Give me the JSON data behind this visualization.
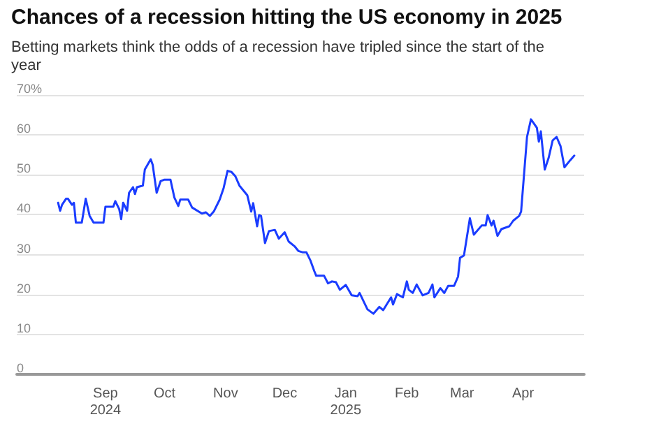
{
  "chart_data": {
    "type": "line",
    "title": "Chances of a recession hitting the US economy in 2025",
    "subtitle": "Betting markets think the odds of a recession have tripled since the start of the year",
    "x": [
      "2024-08-08",
      "2024-08-09",
      "2024-08-10",
      "2024-08-12",
      "2024-08-13",
      "2024-08-15",
      "2024-08-16",
      "2024-08-17",
      "2024-08-20",
      "2024-08-22",
      "2024-08-24",
      "2024-08-26",
      "2024-08-31",
      "2024-09-01",
      "2024-09-05",
      "2024-09-06",
      "2024-09-08",
      "2024-09-09",
      "2024-09-10",
      "2024-09-12",
      "2024-09-13",
      "2024-09-15",
      "2024-09-16",
      "2024-09-17",
      "2024-09-20",
      "2024-09-21",
      "2024-09-24",
      "2024-09-25",
      "2024-09-27",
      "2024-09-29",
      "2024-10-01",
      "2024-10-04",
      "2024-10-06",
      "2024-10-08",
      "2024-10-09",
      "2024-10-13",
      "2024-10-15",
      "2024-10-20",
      "2024-10-22",
      "2024-10-24",
      "2024-10-26",
      "2024-10-29",
      "2024-10-31",
      "2024-11-02",
      "2024-11-04",
      "2024-11-06",
      "2024-11-08",
      "2024-11-12",
      "2024-11-14",
      "2024-11-15",
      "2024-11-17",
      "2024-11-18",
      "2024-11-19",
      "2024-11-21",
      "2024-11-23",
      "2024-11-26",
      "2024-11-28",
      "2024-12-01",
      "2024-12-03",
      "2024-12-06",
      "2024-12-08",
      "2024-12-10",
      "2024-12-12",
      "2024-12-14",
      "2024-12-16",
      "2024-12-17",
      "2024-12-21",
      "2024-12-23",
      "2024-12-25",
      "2024-12-27",
      "2024-12-29",
      "2025-01-01",
      "2025-01-04",
      "2025-01-07",
      "2025-01-08",
      "2025-01-12",
      "2025-01-15",
      "2025-01-18",
      "2025-01-20",
      "2025-01-24",
      "2025-01-25",
      "2025-01-27",
      "2025-01-30",
      "2025-02-01",
      "2025-02-02",
      "2025-02-04",
      "2025-02-06",
      "2025-02-09",
      "2025-02-12",
      "2025-02-14",
      "2025-02-15",
      "2025-02-18",
      "2025-02-20",
      "2025-02-22",
      "2025-02-25",
      "2025-02-27",
      "2025-02-28",
      "2025-03-02",
      "2025-03-05",
      "2025-03-07",
      "2025-03-11",
      "2025-03-13",
      "2025-03-14",
      "2025-03-16",
      "2025-03-17",
      "2025-03-19",
      "2025-03-21",
      "2025-03-25",
      "2025-03-27",
      "2025-03-30",
      "2025-03-31",
      "2025-04-03",
      "2025-04-05",
      "2025-04-08",
      "2025-04-09",
      "2025-04-10",
      "2025-04-12",
      "2025-04-14",
      "2025-04-16",
      "2025-04-18",
      "2025-04-20",
      "2025-04-22",
      "2025-04-25",
      "2025-04-27"
    ],
    "series": [
      {
        "color": "#1a3cff",
        "values": [
          43,
          41,
          42.5,
          44,
          44,
          42.5,
          43,
          38,
          38,
          44,
          39.7,
          38,
          38,
          42,
          42,
          43.4,
          41.4,
          38.9,
          43,
          41,
          45.5,
          46.9,
          45.2,
          46.9,
          47.3,
          51.3,
          53.9,
          52.5,
          45.5,
          48.4,
          48.8,
          48.8,
          44.3,
          42.2,
          43.8,
          43.8,
          41.8,
          40.3,
          40.6,
          39.7,
          40.8,
          43.8,
          46.7,
          51,
          50.7,
          49.6,
          47.3,
          44.9,
          40.8,
          42.9,
          37.1,
          39.9,
          39.7,
          32.9,
          35.9,
          36.2,
          34,
          35.6,
          33.3,
          32.1,
          30.9,
          30.6,
          30.6,
          28.6,
          25.9,
          24.7,
          24.7,
          22.8,
          23.3,
          23.1,
          21.2,
          22.4,
          19.8,
          19.6,
          20.4,
          16.3,
          15.2,
          16.9,
          16.1,
          19.3,
          17.5,
          20.1,
          19.3,
          23.3,
          21.2,
          20.4,
          22.5,
          19.8,
          20.4,
          22.5,
          19.3,
          21.6,
          20.4,
          22.2,
          22.2,
          24.5,
          29.2,
          29.8,
          39.1,
          35,
          37.3,
          37.3,
          39.9,
          37.3,
          38.5,
          34.7,
          36.4,
          37.1,
          38.5,
          39.7,
          40.8,
          59.5,
          63.9,
          61.8,
          58.3,
          60.9,
          51.3,
          54.3,
          58.6,
          59.5,
          57.2,
          51.9,
          53.7,
          54.8
        ]
      }
    ],
    "xlim": [
      "2024-07-18",
      "2025-05-02"
    ],
    "xticks": [
      {
        "value": "2024-09-01",
        "label": "Sep\n2024"
      },
      {
        "value": "2024-10-01",
        "label": "Oct"
      },
      {
        "value": "2024-11-01",
        "label": "Nov"
      },
      {
        "value": "2024-12-01",
        "label": "Dec"
      },
      {
        "value": "2025-01-01",
        "label": "Jan\n2025"
      },
      {
        "value": "2025-02-01",
        "label": "Feb"
      },
      {
        "value": "2025-03-01",
        "label": "Mar"
      },
      {
        "value": "2025-04-01",
        "label": "Apr"
      }
    ],
    "ylim": [
      0,
      70
    ],
    "yticks": [
      0,
      10,
      20,
      30,
      40,
      50,
      60,
      {
        "value": 70,
        "label": "70%"
      }
    ],
    "grid": "y",
    "marker": "none",
    "line_style": "solid"
  }
}
